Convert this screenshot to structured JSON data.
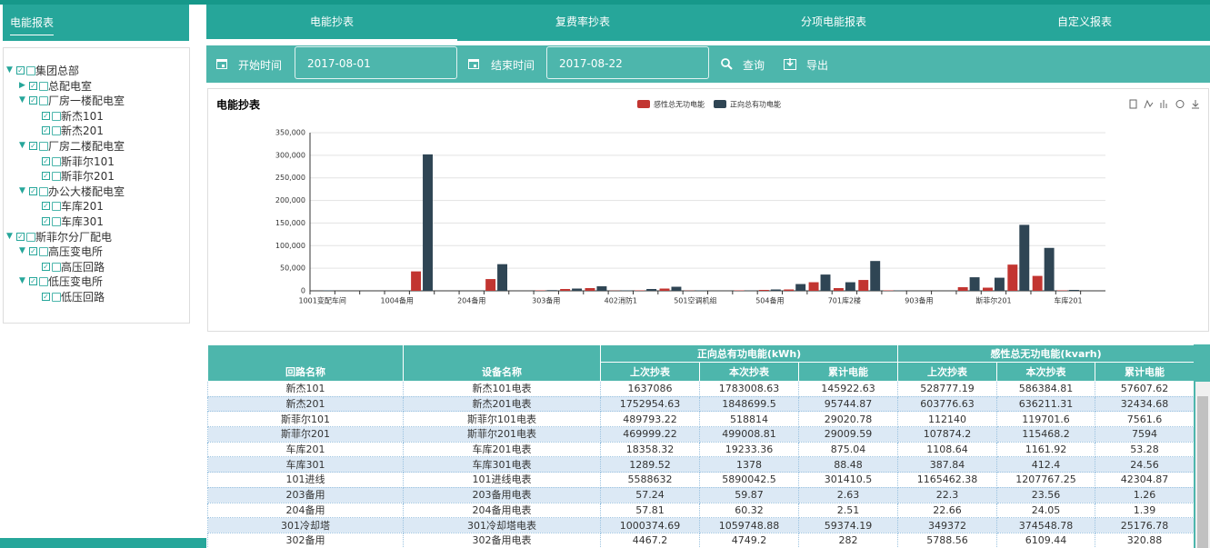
{
  "sidebar": {
    "tab": "电能报表",
    "tree": [
      {
        "label": "集团总部",
        "children": [
          {
            "label": "总配电室",
            "collapsed": true
          },
          {
            "label": "厂房一楼配电室",
            "children": [
              {
                "label": "新杰101"
              },
              {
                "label": "新杰201"
              }
            ]
          },
          {
            "label": "厂房二楼配电室",
            "children": [
              {
                "label": "斯菲尔101"
              },
              {
                "label": "斯菲尔201"
              }
            ]
          },
          {
            "label": "办公大楼配电室",
            "children": [
              {
                "label": "车库201"
              },
              {
                "label": "车库301"
              }
            ]
          }
        ]
      },
      {
        "label": "斯菲尔分厂配电",
        "children": [
          {
            "label": "高压变电所",
            "children": [
              {
                "label": "高压回路"
              }
            ]
          },
          {
            "label": "低压变电所",
            "children": [
              {
                "label": "低压回路"
              }
            ]
          }
        ]
      }
    ]
  },
  "nav": {
    "tabs": [
      "电能抄表",
      "复费率抄表",
      "分项电能报表",
      "自定义报表"
    ],
    "active": 0
  },
  "toolbar": {
    "start_label": "开始时间",
    "start_value": "2017-08-01",
    "end_label": "结束时间",
    "end_value": "2017-08-22",
    "query": "查询",
    "export": "导出"
  },
  "chart_data": {
    "type": "bar",
    "title": "电能抄表",
    "categories": [
      "1001变配车间",
      null,
      null,
      "1004备用",
      null,
      null,
      "204备用",
      null,
      null,
      "303备用",
      null,
      null,
      "402消防1",
      null,
      null,
      "501空调机组",
      null,
      null,
      "504备用",
      null,
      null,
      "701库2楼",
      null,
      null,
      "903备用",
      null,
      null,
      "斯菲尔201",
      null,
      null,
      "车库201",
      null
    ],
    "series": [
      {
        "name": "感性总无功电能",
        "color": "#c23531",
        "values": [
          0,
          0,
          0,
          0,
          43000,
          0,
          0,
          26000,
          0,
          1000,
          4000,
          6000,
          500,
          1000,
          5000,
          500,
          0,
          1000,
          2000,
          3000,
          19000,
          6000,
          24000,
          1000,
          0,
          0,
          8000,
          7000,
          58000,
          33000,
          1000,
          0
        ]
      },
      {
        "name": "正向总有功电能",
        "color": "#2f4554",
        "values": [
          1000,
          0,
          0,
          0,
          302000,
          0,
          0,
          59000,
          0,
          1500,
          5000,
          10000,
          1000,
          4000,
          9000,
          1000,
          0,
          500,
          3000,
          15000,
          36000,
          19000,
          66000,
          1000,
          0,
          0,
          30000,
          29000,
          146000,
          95000,
          2000,
          0
        ]
      }
    ],
    "ylim": [
      0,
      350000
    ],
    "yticks": [
      0,
      {
        "value": 50000,
        "label": "50,000"
      },
      {
        "value": 100000,
        "label": "100,000"
      },
      {
        "value": 150000,
        "label": "150,000"
      },
      {
        "value": 200000,
        "label": "200,000"
      },
      {
        "value": 250000,
        "label": "250,000"
      },
      {
        "value": 300000,
        "label": "300,000"
      },
      {
        "value": 350000,
        "label": "350,000"
      }
    ],
    "grid": true
  },
  "table": {
    "columns": [
      "回路名称",
      "设备名称"
    ],
    "groups": [
      {
        "title": "正向总有功电能(kWh)",
        "columns": [
          "上次抄表",
          "本次抄表",
          "累计电能"
        ]
      },
      {
        "title": "感性总无功电能(kvarh)",
        "columns": [
          "上次抄表",
          "本次抄表",
          "累计电能"
        ]
      }
    ],
    "rows": [
      [
        "新杰101",
        "新杰101电表",
        "1637086",
        "1783008.63",
        "145922.63",
        "528777.19",
        "586384.81",
        "57607.62"
      ],
      [
        "新杰201",
        "新杰201电表",
        "1752954.63",
        "1848699.5",
        "95744.87",
        "603776.63",
        "636211.31",
        "32434.68"
      ],
      [
        "斯菲尔101",
        "斯菲尔101电表",
        "489793.22",
        "518814",
        "29020.78",
        "112140",
        "119701.6",
        "7561.6"
      ],
      [
        "斯菲尔201",
        "斯菲尔201电表",
        "469999.22",
        "499008.81",
        "29009.59",
        "107874.2",
        "115468.2",
        "7594"
      ],
      [
        "车库201",
        "车库201电表",
        "18358.32",
        "19233.36",
        "875.04",
        "1108.64",
        "1161.92",
        "53.28"
      ],
      [
        "车库301",
        "车库301电表",
        "1289.52",
        "1378",
        "88.48",
        "387.84",
        "412.4",
        "24.56"
      ],
      [
        "101进线",
        "101进线电表",
        "5588632",
        "5890042.5",
        "301410.5",
        "1165462.38",
        "1207767.25",
        "42304.87"
      ],
      [
        "203备用",
        "203备用电表",
        "57.24",
        "59.87",
        "2.63",
        "22.3",
        "23.56",
        "1.26"
      ],
      [
        "204备用",
        "204备用电表",
        "57.81",
        "60.32",
        "2.51",
        "22.66",
        "24.05",
        "1.39"
      ],
      [
        "301冷却塔",
        "301冷却塔电表",
        "1000374.69",
        "1059748.88",
        "59374.19",
        "349372",
        "374548.78",
        "25176.78"
      ],
      [
        "302备用",
        "302备用电表",
        "4467.2",
        "4749.2",
        "282",
        "5788.56",
        "6109.44",
        "320.88"
      ]
    ]
  }
}
